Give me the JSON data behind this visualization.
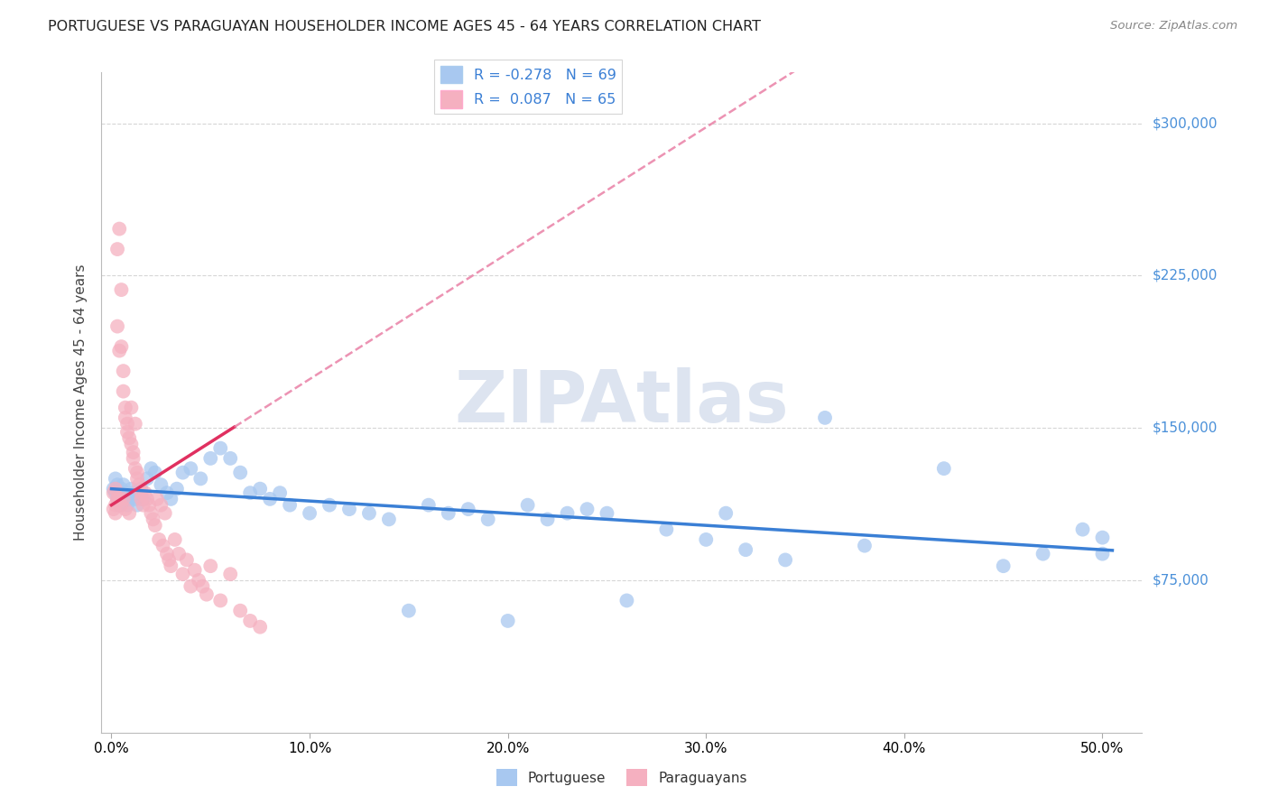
{
  "title": "PORTUGUESE VS PARAGUAYAN HOUSEHOLDER INCOME AGES 45 - 64 YEARS CORRELATION CHART",
  "source": "Source: ZipAtlas.com",
  "ylabel": "Householder Income Ages 45 - 64 years",
  "xlabel_ticks": [
    "0.0%",
    "10.0%",
    "20.0%",
    "30.0%",
    "40.0%",
    "50.0%"
  ],
  "xlabel_vals": [
    0.0,
    0.1,
    0.2,
    0.3,
    0.4,
    0.5
  ],
  "ytick_labels": [
    "$75,000",
    "$150,000",
    "$225,000",
    "$300,000"
  ],
  "ytick_vals": [
    75000,
    150000,
    225000,
    300000
  ],
  "ylim": [
    0,
    325000
  ],
  "xlim": [
    -0.005,
    0.52
  ],
  "blue_color": "#a8c8f0",
  "pink_color": "#f5b0c0",
  "blue_line_color": "#3a7fd5",
  "pink_line_color": "#e03060",
  "pink_dash_color": "#e878a0",
  "background_color": "#ffffff",
  "grid_color": "#cccccc",
  "watermark_text": "ZIPAtlas",
  "watermark_color": "#dde4f0",
  "right_label_color": "#4a90d9",
  "portuguese_x": [
    0.001,
    0.002,
    0.002,
    0.003,
    0.003,
    0.004,
    0.004,
    0.005,
    0.005,
    0.006,
    0.007,
    0.008,
    0.009,
    0.01,
    0.011,
    0.012,
    0.013,
    0.014,
    0.015,
    0.016,
    0.018,
    0.02,
    0.022,
    0.025,
    0.028,
    0.03,
    0.033,
    0.036,
    0.04,
    0.045,
    0.05,
    0.055,
    0.06,
    0.065,
    0.07,
    0.075,
    0.08,
    0.085,
    0.09,
    0.1,
    0.11,
    0.12,
    0.13,
    0.14,
    0.15,
    0.16,
    0.17,
    0.18,
    0.19,
    0.2,
    0.21,
    0.22,
    0.23,
    0.24,
    0.25,
    0.26,
    0.28,
    0.3,
    0.31,
    0.32,
    0.34,
    0.36,
    0.38,
    0.42,
    0.45,
    0.47,
    0.49,
    0.5,
    0.5
  ],
  "portuguese_y": [
    120000,
    125000,
    118000,
    122000,
    115000,
    118000,
    112000,
    120000,
    115000,
    122000,
    118000,
    112000,
    115000,
    120000,
    118000,
    115000,
    112000,
    118000,
    120000,
    115000,
    125000,
    130000,
    128000,
    122000,
    118000,
    115000,
    120000,
    128000,
    130000,
    125000,
    135000,
    140000,
    135000,
    128000,
    118000,
    120000,
    115000,
    118000,
    112000,
    108000,
    112000,
    110000,
    108000,
    105000,
    60000,
    112000,
    108000,
    110000,
    105000,
    55000,
    112000,
    105000,
    108000,
    110000,
    108000,
    65000,
    100000,
    95000,
    108000,
    90000,
    85000,
    155000,
    92000,
    130000,
    82000,
    88000,
    100000,
    88000,
    96000
  ],
  "paraguayan_x": [
    0.001,
    0.001,
    0.002,
    0.002,
    0.002,
    0.003,
    0.003,
    0.003,
    0.004,
    0.004,
    0.004,
    0.005,
    0.005,
    0.005,
    0.006,
    0.006,
    0.006,
    0.007,
    0.007,
    0.007,
    0.008,
    0.008,
    0.009,
    0.009,
    0.01,
    0.01,
    0.011,
    0.011,
    0.012,
    0.012,
    0.013,
    0.013,
    0.014,
    0.015,
    0.015,
    0.016,
    0.017,
    0.018,
    0.019,
    0.02,
    0.021,
    0.022,
    0.023,
    0.024,
    0.025,
    0.026,
    0.027,
    0.028,
    0.029,
    0.03,
    0.032,
    0.034,
    0.036,
    0.038,
    0.04,
    0.042,
    0.044,
    0.046,
    0.048,
    0.05,
    0.055,
    0.06,
    0.065,
    0.07,
    0.075
  ],
  "paraguayan_y": [
    118000,
    110000,
    120000,
    112000,
    108000,
    238000,
    200000,
    115000,
    248000,
    188000,
    115000,
    218000,
    190000,
    112000,
    178000,
    168000,
    115000,
    160000,
    155000,
    110000,
    152000,
    148000,
    145000,
    108000,
    160000,
    142000,
    138000,
    135000,
    152000,
    130000,
    128000,
    125000,
    122000,
    118000,
    115000,
    112000,
    118000,
    115000,
    112000,
    108000,
    105000,
    102000,
    115000,
    95000,
    112000,
    92000,
    108000,
    88000,
    85000,
    82000,
    95000,
    88000,
    78000,
    85000,
    72000,
    80000,
    75000,
    72000,
    68000,
    82000,
    65000,
    78000,
    60000,
    55000,
    52000
  ],
  "blue_reg_intercept": 120000,
  "blue_reg_slope": -60000,
  "pink_reg_intercept": 112000,
  "pink_reg_slope": 620000
}
